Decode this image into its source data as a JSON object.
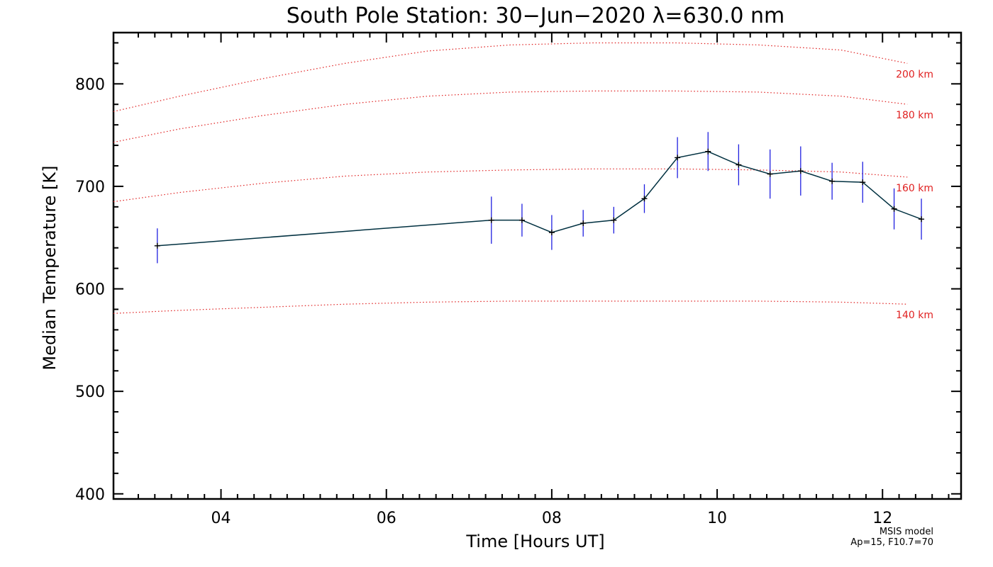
{
  "chart_data": {
    "type": "line",
    "title": "South Pole Station: 30−Jun−2020 λ=630.0 nm",
    "xlabel": "Time [Hours UT]",
    "ylabel": "Median Temperature [K]",
    "xlim": [
      2.7,
      12.95
    ],
    "ylim": [
      395,
      850
    ],
    "x_ticks": [
      4,
      6,
      8,
      10,
      12
    ],
    "x_tick_labels": [
      "04",
      "06",
      "08",
      "10",
      "12"
    ],
    "y_ticks": [
      400,
      500,
      600,
      700,
      800
    ],
    "y_tick_labels": [
      "400",
      "500",
      "600",
      "700",
      "800"
    ],
    "series": [
      {
        "name": "Median Temperature",
        "line_color": "#003040",
        "error_color": "#2020e0",
        "points": [
          {
            "x": 3.23,
            "y": 642,
            "err": 17
          },
          {
            "x": 7.27,
            "y": 667,
            "err": 23
          },
          {
            "x": 7.64,
            "y": 667,
            "err": 16
          },
          {
            "x": 8.0,
            "y": 655,
            "err": 17
          },
          {
            "x": 8.38,
            "y": 664,
            "err": 13
          },
          {
            "x": 8.75,
            "y": 667,
            "err": 13
          },
          {
            "x": 9.12,
            "y": 688,
            "err": 14
          },
          {
            "x": 9.52,
            "y": 728,
            "err": 20
          },
          {
            "x": 9.89,
            "y": 734,
            "err": 19
          },
          {
            "x": 10.26,
            "y": 721,
            "err": 20
          },
          {
            "x": 10.64,
            "y": 712,
            "err": 24
          },
          {
            "x": 11.01,
            "y": 715,
            "err": 24
          },
          {
            "x": 11.39,
            "y": 705,
            "err": 18
          },
          {
            "x": 11.76,
            "y": 704,
            "err": 20
          },
          {
            "x": 12.14,
            "y": 678,
            "err": 20
          },
          {
            "x": 12.47,
            "y": 668,
            "err": 20
          }
        ]
      }
    ],
    "model_curves": {
      "color": "#e02020",
      "x": [
        2.7,
        3.5,
        4.5,
        5.5,
        6.5,
        7.5,
        8.5,
        9.5,
        10.5,
        11.5,
        12.3
      ],
      "curves": [
        {
          "label": "200 km",
          "y": [
            773,
            788,
            805,
            820,
            832,
            838,
            840,
            840,
            838,
            833,
            820
          ]
        },
        {
          "label": "180 km",
          "y": [
            743,
            756,
            769,
            780,
            788,
            792,
            793,
            793,
            792,
            788,
            780
          ]
        },
        {
          "label": "160 km",
          "y": [
            685,
            694,
            703,
            710,
            714,
            716,
            717,
            717,
            716,
            714,
            709
          ]
        },
        {
          "label": "140 km",
          "y": [
            576,
            579,
            582,
            585,
            587,
            588,
            588,
            588,
            588,
            587,
            585
          ]
        }
      ]
    },
    "annotation": {
      "line1": "MSIS model",
      "line2": "Ap=15, F10.7=70"
    }
  }
}
